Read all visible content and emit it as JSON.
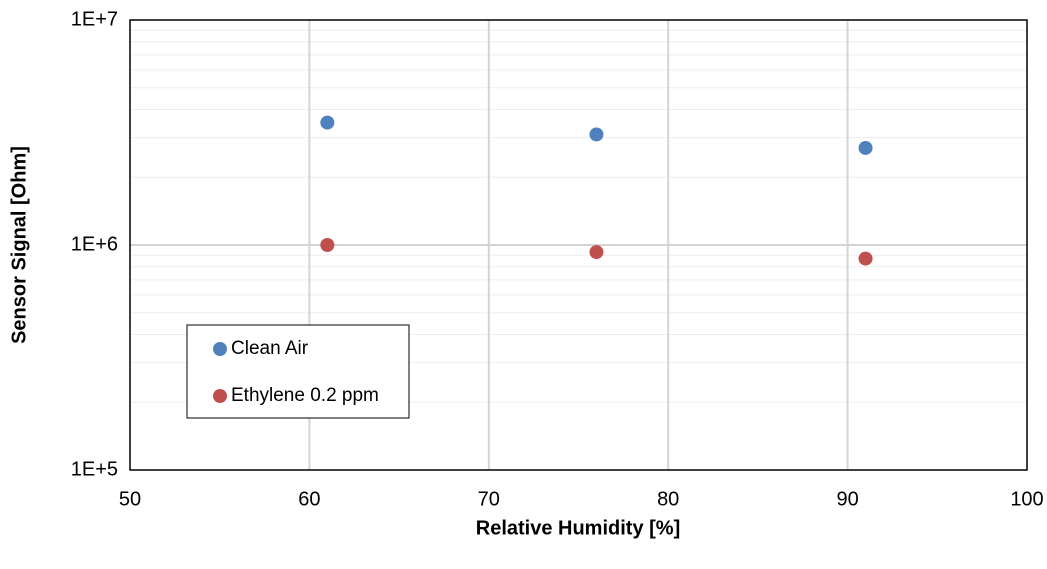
{
  "chart_data": {
    "type": "scatter",
    "title": "",
    "xlabel": "Relative Humidity [%]",
    "ylabel": "Sensor Signal [Ohm]",
    "xlim": [
      50,
      100
    ],
    "ylim": [
      100000,
      10000000
    ],
    "yscale": "log",
    "xticks": [
      50,
      60,
      70,
      80,
      90,
      100
    ],
    "xtick_labels": [
      "50",
      "60",
      "70",
      "80",
      "90",
      "100"
    ],
    "yticks": [
      100000,
      1000000,
      10000000
    ],
    "ytick_labels": [
      "1E+5",
      "1E+6",
      "1E+7"
    ],
    "grid": true,
    "legend_position": "lower-left",
    "series": [
      {
        "name": "Clean Air",
        "color": "#4f81bd",
        "x": [
          61,
          76,
          91
        ],
        "y": [
          3500000,
          3100000,
          2700000
        ]
      },
      {
        "name": "Ethylene 0.2 ppm",
        "color": "#c0504d",
        "x": [
          61,
          76,
          91
        ],
        "y": [
          1000000,
          930000,
          870000
        ]
      }
    ]
  }
}
